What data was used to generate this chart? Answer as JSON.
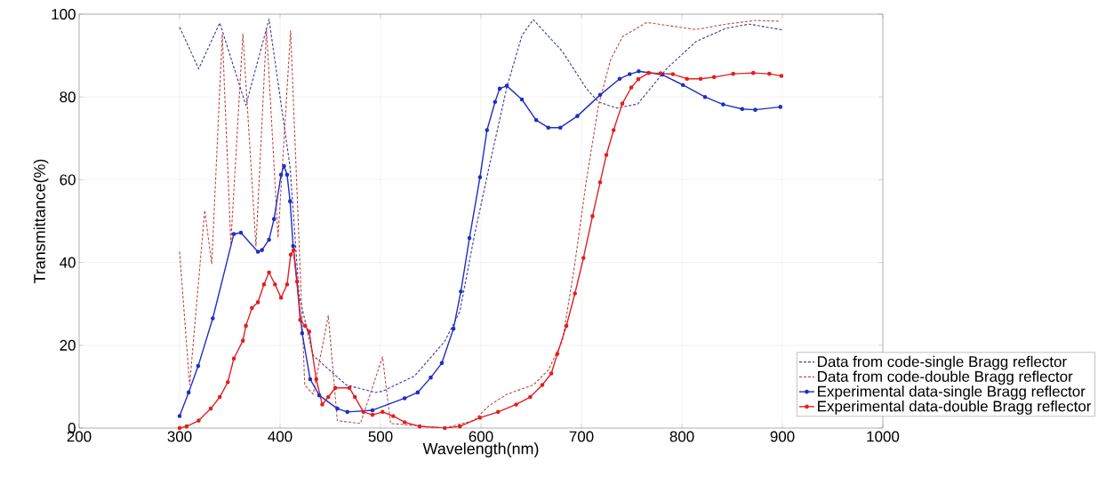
{
  "chart_data": {
    "type": "line",
    "xlabel": "Wavelength(nm)",
    "ylabel": "Transmittance(%)",
    "xlim": [
      200,
      1000
    ],
    "ylim": [
      0,
      100
    ],
    "xticks": [
      200,
      300,
      400,
      500,
      600,
      700,
      800,
      900,
      1000
    ],
    "yticks": [
      0,
      20,
      40,
      60,
      80,
      100
    ],
    "grid": true,
    "legend": "bottom right",
    "series": [
      {
        "name": "Data from code-single Bragg reflector",
        "color": "#3a3aa0",
        "line_style": "dashed",
        "marker": "none",
        "x": [
          300,
          319,
          340,
          366,
          389,
          410,
          419,
          433,
          466,
          495,
          502,
          534,
          564,
          579,
          593,
          608,
          626,
          641,
          652,
          681,
          705,
          717,
          735,
          756,
          785,
          814,
          844,
          867,
          898,
          900
        ],
        "values": [
          96.9,
          86.8,
          97.9,
          78,
          98.8,
          63,
          32,
          17.5,
          10.4,
          8.6,
          8.9,
          12.6,
          21,
          28.2,
          46,
          63,
          82.6,
          95,
          98.7,
          91,
          82,
          78.8,
          77.3,
          78.3,
          86.9,
          93.4,
          96.6,
          97.6,
          96.3,
          96.1
        ]
      },
      {
        "name": "Data from code-double Bragg reflector",
        "color": "#c04848",
        "line_style": "dashed",
        "marker": "none",
        "x": [
          300,
          310,
          325,
          332,
          342.5,
          351,
          363,
          376,
          386.5,
          398,
          410.5,
          424.6,
          433,
          448,
          457,
          480,
          502,
          510,
          564,
          593,
          608,
          626,
          652,
          667,
          681,
          693,
          705,
          717,
          729,
          741,
          765,
          785,
          814,
          844,
          873,
          898
        ],
        "values": [
          42.6,
          10.4,
          52.6,
          39.7,
          95.2,
          44.7,
          95.2,
          44,
          96.3,
          46,
          96,
          10.4,
          8.2,
          27.2,
          1.8,
          1.1,
          17.2,
          1.1,
          0,
          1.8,
          5.4,
          8.2,
          10.4,
          14,
          21,
          39,
          60,
          78,
          89,
          94.6,
          98,
          97.3,
          96.3,
          97.6,
          98.5,
          98.3
        ]
      },
      {
        "name": "Experimental data-single Bragg reflector",
        "color": "#1f2fc0",
        "line_style": "solid",
        "marker": "circle",
        "x": [
          300,
          309,
          318.5,
          333,
          354,
          361,
          378,
          382,
          389,
          394,
          401,
          404,
          407,
          410,
          413,
          422,
          430,
          439,
          457,
          467,
          492,
          524,
          537,
          550,
          561,
          572.6,
          580,
          588.5,
          599,
          606,
          614,
          618.6,
          625.7,
          640.7,
          655,
          667,
          679,
          696,
          718.6,
          738,
          748,
          757,
          780.5,
          801,
          823,
          841,
          860,
          873,
          898
        ],
        "values": [
          2.9,
          8.6,
          15,
          26.5,
          46.9,
          47.2,
          42.6,
          43,
          45.5,
          50.5,
          61.2,
          63.3,
          61.2,
          54.8,
          44,
          22.9,
          11.8,
          7.9,
          4.7,
          3.9,
          4.3,
          7.2,
          8.6,
          12.2,
          15.7,
          24,
          33,
          45.9,
          60.6,
          72,
          78.8,
          82,
          82.7,
          79.4,
          74.4,
          72.6,
          72.6,
          75.4,
          80.5,
          84.4,
          85.5,
          86.2,
          85.4,
          82.9,
          80,
          78.2,
          77.1,
          76.9,
          77.6
        ]
      },
      {
        "name": "Experimental data-double Bragg reflector",
        "color": "#e02020",
        "line_style": "solid",
        "marker": "circle",
        "x": [
          300,
          307,
          319,
          331,
          340,
          348,
          354,
          363,
          366,
          372,
          378,
          384,
          389,
          395,
          401,
          407,
          410.6,
          413.5,
          417,
          420,
          425,
          429,
          436,
          442,
          448,
          455,
          469,
          474.5,
          483,
          492,
          502,
          512.6,
          524,
          539,
          564,
          579,
          599,
          617,
          635,
          649,
          661,
          670,
          676,
          685,
          693.5,
          702,
          711,
          718.6,
          724.8,
          732,
          740.7,
          749.6,
          756.6,
          767,
          778.8,
          791,
          805,
          818.6,
          832,
          851,
          871,
          887,
          899
        ],
        "values": [
          0,
          0.4,
          1.8,
          4.7,
          7.5,
          11.1,
          16.8,
          21.1,
          24.7,
          29,
          30.4,
          34.7,
          37.6,
          34.7,
          31.5,
          34.7,
          41.9,
          43,
          35.4,
          26.1,
          24.7,
          23.3,
          11.8,
          5.7,
          7.5,
          9.7,
          9.7,
          7.5,
          3.9,
          3.2,
          3.9,
          2.9,
          1.4,
          0.4,
          0,
          0.4,
          2.5,
          3.9,
          5.7,
          7.5,
          10.4,
          13.2,
          17.9,
          24.7,
          32.5,
          41.1,
          51.2,
          59.4,
          66,
          72,
          78.4,
          82.3,
          84.3,
          85.8,
          85.7,
          85.5,
          84.4,
          84.4,
          84.8,
          85.6,
          85.8,
          85.6,
          85.1
        ]
      }
    ]
  }
}
